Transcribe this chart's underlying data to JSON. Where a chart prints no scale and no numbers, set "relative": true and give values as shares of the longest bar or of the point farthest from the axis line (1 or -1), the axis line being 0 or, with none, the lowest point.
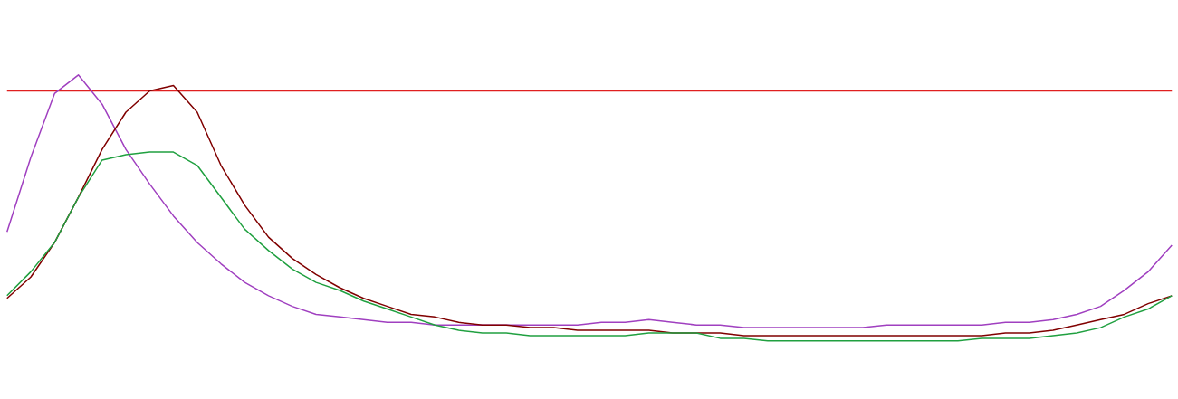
{
  "chart_data": {
    "type": "line",
    "relative": true,
    "grid": false,
    "marker": "none",
    "line_style": "solid",
    "categories": [
      null,
      null,
      null,
      null,
      null,
      null,
      null,
      null,
      null,
      null,
      null,
      null,
      null,
      null,
      null,
      null,
      null,
      null,
      null,
      null,
      null,
      null,
      null,
      null,
      null,
      null,
      null,
      null,
      null,
      null,
      null,
      null,
      null,
      null,
      null,
      null,
      null,
      null,
      null,
      null,
      null,
      null,
      null,
      null,
      null,
      null,
      null,
      null,
      null,
      null
    ],
    "series": [
      {
        "color": "#e02020",
        "values": [
          0.94,
          0.94,
          0.94,
          0.94,
          0.94,
          0.94,
          0.94,
          0.94,
          0.94,
          0.94,
          0.94,
          0.94,
          0.94,
          0.94,
          0.94,
          0.94,
          0.94,
          0.94,
          0.94,
          0.94,
          0.94,
          0.94,
          0.94,
          0.94,
          0.94,
          0.94,
          0.94,
          0.94,
          0.94,
          0.94,
          0.94,
          0.94,
          0.94,
          0.94,
          0.94,
          0.94,
          0.94,
          0.94,
          0.94,
          0.94,
          0.94,
          0.94,
          0.94,
          0.94,
          0.94,
          0.94,
          0.94,
          0.94,
          0.94,
          0.94
        ]
      },
      {
        "color": "#a040c0",
        "values": [
          0.41,
          0.69,
          0.93,
          1,
          0.89,
          0.72,
          0.59,
          0.47,
          0.37,
          0.29,
          0.22,
          0.17,
          0.13,
          0.1,
          0.09,
          0.08,
          0.07,
          0.07,
          0.06,
          0.06,
          0.06,
          0.06,
          0.06,
          0.06,
          0.06,
          0.07,
          0.07,
          0.08,
          0.07,
          0.06,
          0.06,
          0.05,
          0.05,
          0.05,
          0.05,
          0.05,
          0.05,
          0.06,
          0.06,
          0.06,
          0.06,
          0.06,
          0.07,
          0.07,
          0.08,
          0.1,
          0.13,
          0.19,
          0.26,
          0.36
        ]
      },
      {
        "color": "#800000",
        "values": [
          0.16,
          0.24,
          0.37,
          0.54,
          0.72,
          0.86,
          0.94,
          0.96,
          0.86,
          0.66,
          0.51,
          0.39,
          0.31,
          0.25,
          0.2,
          0.16,
          0.13,
          0.1,
          0.09,
          0.07,
          0.06,
          0.06,
          0.05,
          0.05,
          0.04,
          0.04,
          0.04,
          0.04,
          0.03,
          0.03,
          0.03,
          0.02,
          0.02,
          0.02,
          0.02,
          0.02,
          0.02,
          0.02,
          0.02,
          0.02,
          0.02,
          0.02,
          0.03,
          0.03,
          0.04,
          0.06,
          0.08,
          0.1,
          0.14,
          0.17
        ]
      },
      {
        "color": "#20a040",
        "values": [
          0.17,
          0.26,
          0.37,
          0.54,
          0.68,
          0.7,
          0.71,
          0.71,
          0.66,
          0.54,
          0.42,
          0.34,
          0.27,
          0.22,
          0.19,
          0.15,
          0.12,
          0.09,
          0.06,
          0.04,
          0.03,
          0.03,
          0.02,
          0.02,
          0.02,
          0.02,
          0.02,
          0.03,
          0.03,
          0.03,
          0.01,
          0.01,
          0,
          0,
          0,
          0,
          0,
          0,
          0,
          0,
          0,
          0.01,
          0.01,
          0.01,
          0.02,
          0.03,
          0.05,
          0.09,
          0.12,
          0.17
        ]
      }
    ]
  }
}
